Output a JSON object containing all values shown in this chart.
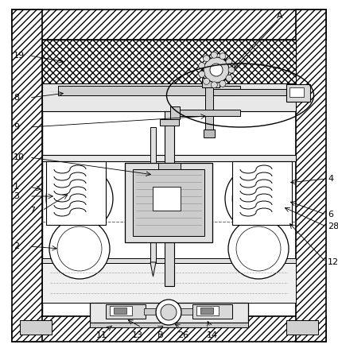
{
  "bg_color": "#ffffff",
  "line_color": "#000000",
  "wall_hatch": "////",
  "cross_hatch": "xxxx",
  "figsize": [
    4.25,
    4.43
  ],
  "dpi": 100
}
